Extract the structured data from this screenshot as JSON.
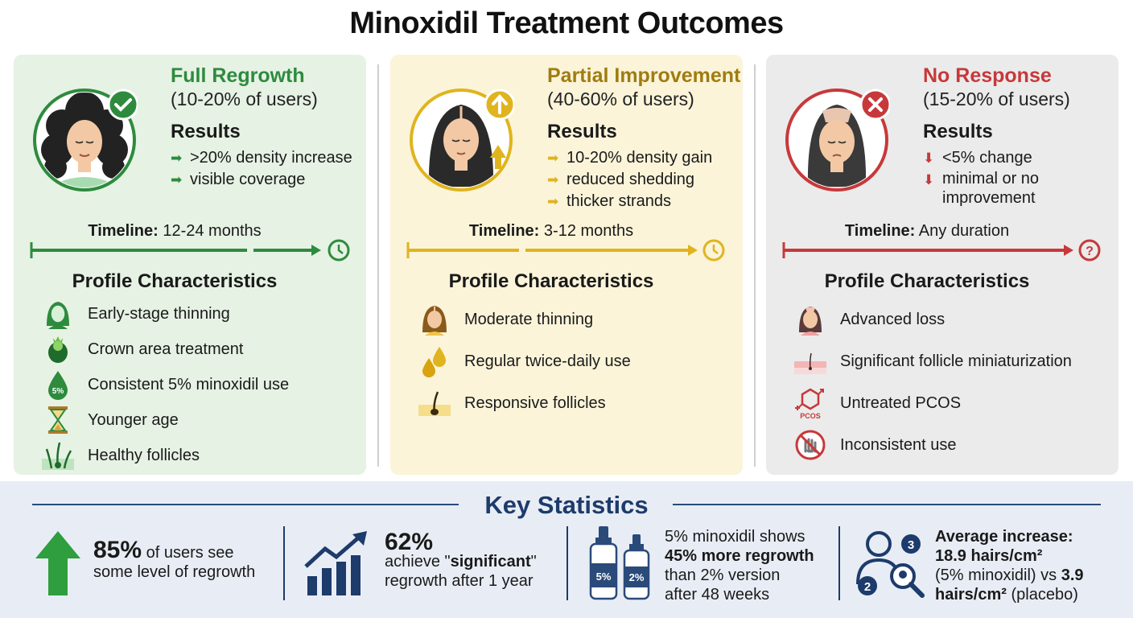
{
  "title": "Minoxidil Treatment Outcomes",
  "categories": [
    {
      "title": "Full Regrowth",
      "users": "(10-20% of users)",
      "color": "#2e8b3e",
      "results_title": "Results",
      "results": [
        ">20% density increase",
        "visible coverage"
      ],
      "timeline_label": "Timeline:",
      "timeline_value": "12-24 months",
      "timeline_icon": "clock-icon",
      "profile_title": "Profile Characteristics",
      "profile": [
        {
          "icon": "woman-icon",
          "label": "Early-stage thinning"
        },
        {
          "icon": "crown-head-icon",
          "label": "Crown area treatment"
        },
        {
          "icon": "drop-icon",
          "icon_text": "5%",
          "label": "Consistent 5% minoxidil use"
        },
        {
          "icon": "hourglass-icon",
          "label": "Younger age"
        },
        {
          "icon": "follicle-icon",
          "label": "Healthy follicles"
        }
      ]
    },
    {
      "title": "Partial Improvement",
      "users": "(40-60% of users)",
      "color": "#e0b41e",
      "results_title": "Results",
      "results": [
        "10-20% density gain",
        "reduced shedding",
        "thicker strands"
      ],
      "timeline_label": "Timeline:",
      "timeline_value": "3-12 months",
      "timeline_icon": "clock-icon",
      "profile_title": "Profile Characteristics",
      "profile": [
        {
          "icon": "woman-icon",
          "label": "Moderate thinning"
        },
        {
          "icon": "drops-icon",
          "label": "Regular twice-daily use"
        },
        {
          "icon": "follicle-icon",
          "label": "Responsive follicles"
        }
      ]
    },
    {
      "title": "No Response",
      "users": "(15-20% of users)",
      "color": "#c8383a",
      "results_title": "Results",
      "results": [
        "<5% change",
        "minimal or no improvement"
      ],
      "timeline_label": "Timeline:",
      "timeline_value": "Any duration",
      "timeline_icon": "question-icon",
      "profile_title": "Profile Characteristics",
      "profile": [
        {
          "icon": "woman-icon",
          "label": "Advanced loss"
        },
        {
          "icon": "follicle-icon",
          "label": "Significant follicle miniaturization"
        },
        {
          "icon": "pcos-icon",
          "icon_text": "PCOS",
          "label": "Untreated PCOS"
        },
        {
          "icon": "no-hand-icon",
          "label": "Inconsistent use"
        }
      ]
    }
  ],
  "stats": {
    "title": "Key Statistics",
    "items": [
      {
        "icon": "up-arrow-icon",
        "big": "85%",
        "text": " of users see some level of regrowth"
      },
      {
        "icon": "bar-chart-icon",
        "big": "62%",
        "pre": "achieve \"",
        "bold": "significant",
        "post": "\" regrowth after 1 year"
      },
      {
        "icon": "bottles-icon",
        "bottle_a": "5%",
        "bottle_b": "2%",
        "line1": "5% minoxidil shows",
        "bold": "45% more regrowth",
        "line3": "than 2% version",
        "line4": "after 48 weeks"
      },
      {
        "icon": "people-icon",
        "badge_a": "3",
        "badge_b": "2",
        "bold1": "Average increase:",
        "bold2": "18.9 hairs/cm²",
        "mid": "(5% minoxidil) vs ",
        "bold3": "3.9",
        "bold4": "hairs/cm²",
        "end": " (placebo)"
      }
    ]
  }
}
